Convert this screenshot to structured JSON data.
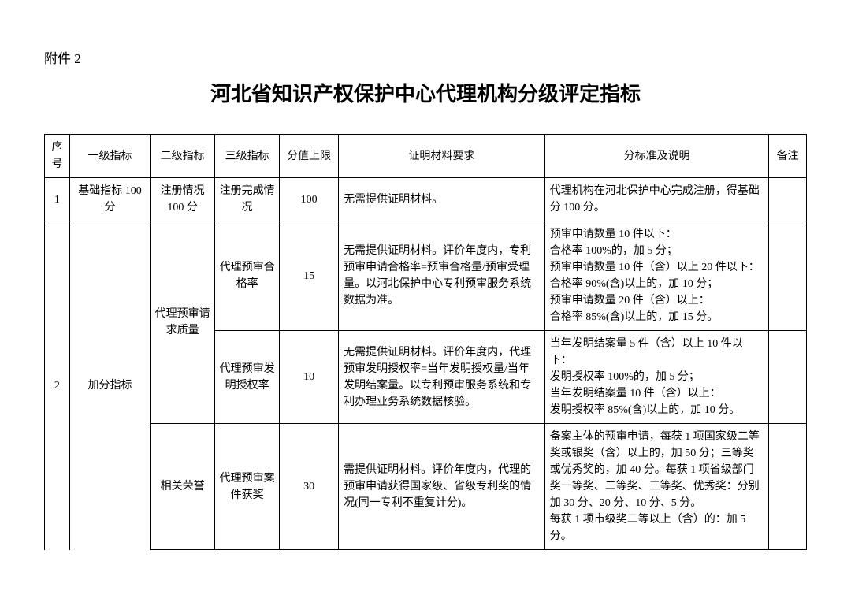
{
  "attachment_label": "附件 2",
  "title": "河北省知识产权保护中心代理机构分级评定指标",
  "headers": {
    "seq": "序号",
    "level1": "一级指标",
    "level2": "二级指标",
    "level3": "三级指标",
    "score_cap": "分值上限",
    "proof": "证明材料要求",
    "standard": "分标准及说明",
    "note": "备注"
  },
  "rows": [
    {
      "seq": "1",
      "level1": "基础指标 100分",
      "level2": "注册情况 100 分",
      "level3": "注册完成情况",
      "score": "100",
      "proof": "无需提供证明材料。",
      "standard": "代理机构在河北保护中心完成注册，得基础分 100 分。",
      "note": ""
    },
    {
      "seq": "2",
      "level1": "加分指标",
      "level2": "代理预审请求质量",
      "level3": "代理预审合格率",
      "score": "15",
      "proof": "无需提供证明材料。评价年度内，专利预审申请合格率=预审合格量/预审受理量。以河北保护中心专利预审服务系统数据为准。",
      "standard": "预审申请数量 10 件以下：\n合格率 100%的，加 5 分；\n预审申请数量 10 件（含）以上 20 件以下：\n合格率 90%(含)以上的，加 10 分；\n预审申请数量 20 件（含）以上：\n合格率 85%(含)以上的，加 15 分。",
      "note": ""
    },
    {
      "level3": "代理预审发明授权率",
      "score": "10",
      "proof": "无需提供证明材料。评价年度内，代理预审发明授权率=当年发明授权量/当年发明结案量。以专利预审服务系统和专利办理业务系统数据核验。",
      "standard": "当年发明结案量 5 件（含）以上 10 件以下：\n发明授权率 100%的，加 5 分；\n当年发明结案量 10 件（含）以上：\n发明授权率 85%(含)以上的，加 10 分。",
      "note": ""
    },
    {
      "level2": "相关荣誉",
      "level3": "代理预审案件获奖",
      "score": "30",
      "proof": "需提供证明材料。评价年度内，代理的预审申请获得国家级、省级专利奖的情况(同一专利不重复计分)。",
      "standard": "备案主体的预审申请，每获 1 项国家级二等奖或银奖（含）以上的，加 50 分；三等奖或优秀奖的，加 40 分。每获 1 项省级部门奖一等奖、二等奖、三等奖、优秀奖：分别加 30 分、20 分、10 分、5 分。\n每获 1 项市级奖二等以上（含）的：加 5 分。",
      "note": ""
    }
  ]
}
